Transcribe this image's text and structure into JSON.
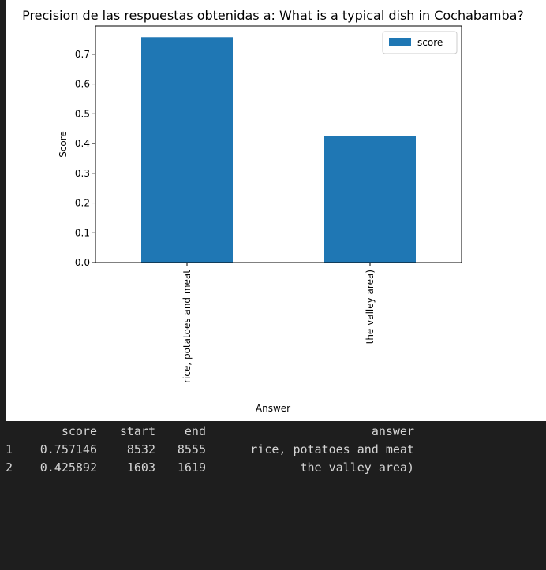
{
  "chart_data": {
    "type": "bar",
    "title": "Precision de las respuestas obtenidas a: What is a typical dish in Cochabamba?",
    "xlabel": "Answer",
    "ylabel": "Score",
    "categories": [
      "rice, potatoes and meat",
      "the valley area)"
    ],
    "series": [
      {
        "name": "score",
        "values": [
          0.757146,
          0.425892
        ],
        "color": "#1f77b4"
      }
    ],
    "ylim": [
      0,
      0.795
    ],
    "yticks": [
      "0.0",
      "0.1",
      "0.2",
      "0.3",
      "0.4",
      "0.5",
      "0.6",
      "0.7"
    ],
    "legend": "top-right",
    "grid": false
  },
  "dataframe": {
    "columns": [
      "score",
      "start",
      "end",
      "answer"
    ],
    "rows": [
      {
        "index": "1",
        "score": "0.757146",
        "start": "8532",
        "end": "8555",
        "answer": "rice, potatoes and meat"
      },
      {
        "index": "2",
        "score": "0.425892",
        "start": "1603",
        "end": "1619",
        "answer": "the valley area)"
      }
    ]
  }
}
